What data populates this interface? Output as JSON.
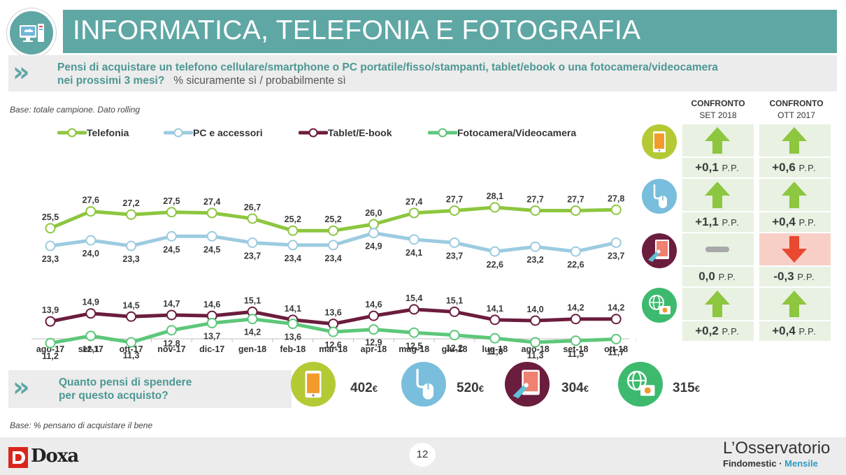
{
  "header": {
    "title": "INFORMATICA, TELEFONIA E FOTOGRAFIA",
    "title_icon": "computer-monitor-icon"
  },
  "question": {
    "main": "Pensi di acquistare un telefono cellulare/smartphone o PC portatile/fisso/stampanti, tablet/ebook o una fotocamera/videocamera",
    "line2": "nei prossimi 3 mesi?",
    "sub": "% sicuramente sì / probabilmente sì"
  },
  "base_note": "Base: totale campione. Dato rolling",
  "chart_data": {
    "type": "line",
    "categories": [
      "ago-17",
      "set-17",
      "ott-17",
      "nov-17",
      "dic-17",
      "gen-18",
      "feb-18",
      "mar-18",
      "apr-18",
      "mag-18",
      "giu-18",
      "lug-18",
      "ago-18",
      "set-18",
      "ott-18"
    ],
    "series": [
      {
        "name": "Telefonia",
        "color": "#8dc63f",
        "values": [
          25.5,
          27.6,
          27.2,
          27.5,
          27.4,
          26.7,
          25.2,
          25.2,
          26.0,
          27.4,
          27.7,
          28.1,
          27.7,
          27.7,
          27.8
        ]
      },
      {
        "name": "PC e accessori",
        "color": "#9ccbe0",
        "values": [
          23.3,
          24.0,
          23.3,
          24.5,
          24.5,
          23.7,
          23.4,
          23.4,
          24.9,
          24.1,
          23.7,
          22.6,
          23.2,
          22.6,
          23.7
        ]
      },
      {
        "name": "Tablet/E-book",
        "color": "#6b1d3e",
        "values": [
          13.9,
          14.9,
          14.5,
          14.7,
          14.6,
          15.1,
          14.1,
          13.6,
          14.6,
          15.4,
          15.1,
          14.1,
          14.0,
          14.2,
          14.2
        ]
      },
      {
        "name": "Fotocamera/Videocamera",
        "color": "#5dc77a",
        "values": [
          11.2,
          12.1,
          11.3,
          12.8,
          13.7,
          14.2,
          13.6,
          12.6,
          12.9,
          12.5,
          12.2,
          11.8,
          11.3,
          11.5,
          11.7
        ]
      }
    ],
    "label_pos": [
      [
        "above",
        "above",
        "above",
        "above",
        "above",
        "above",
        "above",
        "above",
        "above",
        "above",
        "above",
        "above",
        "above",
        "above",
        "above"
      ],
      [
        "below",
        "below",
        "below",
        "below",
        "below",
        "below",
        "below",
        "below",
        "below",
        "below",
        "below",
        "below",
        "below",
        "below",
        "below"
      ],
      [
        "above",
        "above",
        "above",
        "above",
        "above",
        "above",
        "above",
        "above",
        "above",
        "above",
        "above",
        "above",
        "above",
        "above",
        "above"
      ],
      [
        "below",
        "below",
        "below",
        "below",
        "below",
        "below",
        "below",
        "below",
        "below",
        "below",
        "below",
        "below",
        "below",
        "below",
        "below"
      ]
    ],
    "legend_position": "top",
    "grid": false
  },
  "comparison": {
    "col1_head_1": "CONFRONTO",
    "col1_head_2": "SET 2018",
    "col2_head_1": "CONFRONTO",
    "col2_head_2": "OTT 2017",
    "unit": "P.P.",
    "rows": [
      {
        "icon": "smartphone-icon",
        "d1": "+0,1",
        "d1_trend": "up",
        "d2": "+0,6",
        "d2_trend": "up"
      },
      {
        "icon": "computer-mouse-icon",
        "d1": "+1,1",
        "d1_trend": "up",
        "d2": "+0,4",
        "d2_trend": "up"
      },
      {
        "icon": "tablet-hand-icon",
        "d1": "0,0",
        "d1_trend": "flat",
        "d2": "-0,3",
        "d2_trend": "down"
      },
      {
        "icon": "globe-camera-icon",
        "d1": "+0,2",
        "d1_trend": "up",
        "d2": "+0,4",
        "d2_trend": "up"
      }
    ]
  },
  "spend": {
    "line1": "Quanto pensi di spendere",
    "line2": "per questo acquisto?",
    "items": [
      {
        "icon": "smartphone-icon",
        "value": "402",
        "unit": "€"
      },
      {
        "icon": "computer-mouse-icon",
        "value": "520",
        "unit": "€"
      },
      {
        "icon": "tablet-hand-icon",
        "value": "304",
        "unit": "€"
      },
      {
        "icon": "globe-camera-icon",
        "value": "315",
        "unit": "€"
      }
    ]
  },
  "base_note_2": "Base: % pensano di acquistare il bene",
  "footer": {
    "page": "12",
    "brand": "Doxa",
    "osservatorio": "L’Osservatorio",
    "findomestic": "Findomestic",
    "sep": " · ",
    "mensile": "Mensile"
  },
  "colors": {
    "teal": "#5fa7a4",
    "green_up": "#8dc63f",
    "red_down": "#e8492f",
    "icon_phone": "#b5c935",
    "icon_pc": "#79bedc",
    "icon_tablet": "#6b1d3e",
    "icon_camera": "#3dba6e"
  }
}
